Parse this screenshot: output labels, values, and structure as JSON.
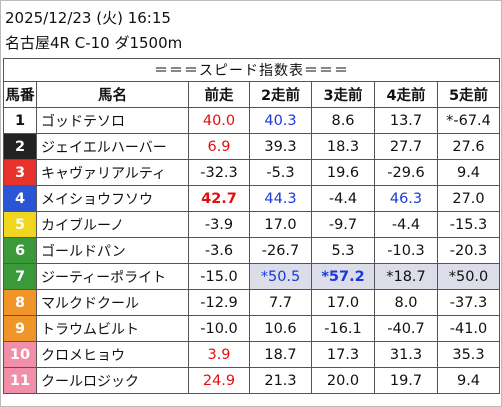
{
  "header": {
    "date": "2025/12/23 (火) 16:15",
    "race": "名古屋4R C-10 ダ1500m"
  },
  "table": {
    "caption": "＝＝＝スピード指数表＝＝＝",
    "columns": [
      "馬番",
      "馬名",
      "前走",
      "2走前",
      "3走前",
      "4走前",
      "5走前"
    ],
    "rows": [
      [
        "1",
        "ゴッドテソロ",
        "40.0",
        "40.3",
        "8.6",
        "13.7",
        "*-67.4"
      ],
      [
        "2",
        "ジェイエルハーバー",
        "6.9",
        "39.3",
        "18.3",
        "27.7",
        "27.6"
      ],
      [
        "3",
        "キャヴァリアルティ",
        "-32.3",
        "-5.3",
        "19.6",
        "-29.6",
        "9.4"
      ],
      [
        "4",
        "メイショウフソウ",
        "42.7",
        "44.3",
        "-4.4",
        "46.3",
        "27.0"
      ],
      [
        "5",
        "カイブルーノ",
        "-3.9",
        "17.0",
        "-9.7",
        "-4.4",
        "-15.3"
      ],
      [
        "6",
        "ゴールドパン",
        "-3.6",
        "-26.7",
        "5.3",
        "-10.3",
        "-20.3"
      ],
      [
        "7",
        "ジーティーポライト",
        "-15.0",
        "*50.5",
        "*57.2",
        "*18.7",
        "*50.0"
      ],
      [
        "8",
        "マルクドクール",
        "-12.9",
        "7.7",
        "17.0",
        "8.0",
        "-37.3"
      ],
      [
        "9",
        "トラウムビルト",
        "-10.0",
        "10.6",
        "-16.1",
        "-40.7",
        "-41.0"
      ],
      [
        "10",
        "クロメヒョウ",
        "3.9",
        "18.7",
        "17.3",
        "31.3",
        "35.3"
      ],
      [
        "11",
        "クールロジック",
        "24.9",
        "21.3",
        "20.0",
        "19.7",
        "9.4"
      ]
    ]
  }
}
